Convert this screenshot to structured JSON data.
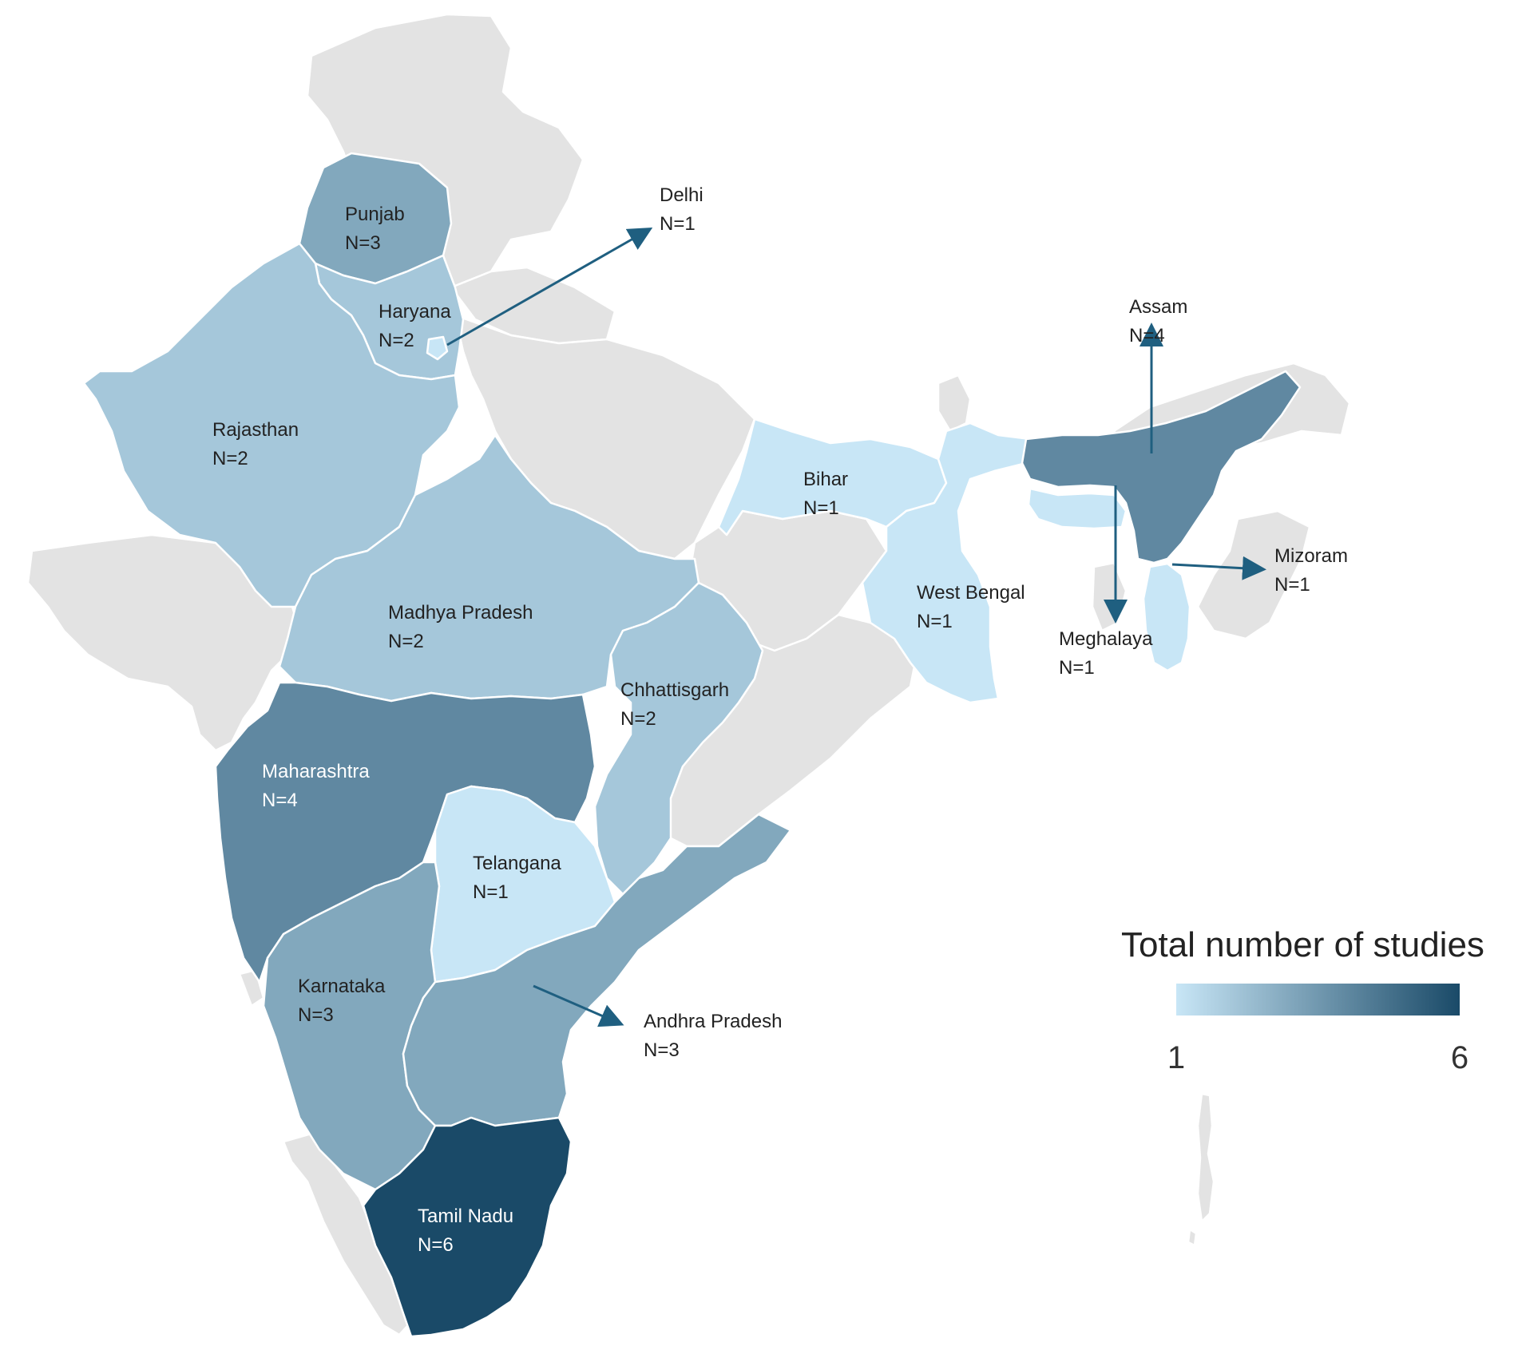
{
  "map": {
    "legend": {
      "title": "Total number of studies",
      "min_label": "1",
      "max_label": "6",
      "min_value": 1,
      "max_value": 6,
      "color_min": "#c8e6f6",
      "color_max": "#1a4a68"
    },
    "colors": {
      "no_data": "#e3e3e3",
      "border": "#ffffff",
      "arrow": "#1f5f80",
      "label_dark": "#222222",
      "label_light": "#ffffff"
    },
    "states": [
      {
        "id": "punjab",
        "name": "Punjab",
        "count_label": "N=3",
        "value": 3
      },
      {
        "id": "haryana",
        "name": "Haryana",
        "count_label": "N=2",
        "value": 2
      },
      {
        "id": "delhi",
        "name": "Delhi",
        "count_label": "N=1",
        "value": 1
      },
      {
        "id": "rajasthan",
        "name": "Rajasthan",
        "count_label": "N=2",
        "value": 2
      },
      {
        "id": "madhya-pradesh",
        "name": "Madhya Pradesh",
        "count_label": "N=2",
        "value": 2
      },
      {
        "id": "chhattisgarh",
        "name": "Chhattisgarh",
        "count_label": "N=2",
        "value": 2
      },
      {
        "id": "maharashtra",
        "name": "Maharashtra",
        "count_label": "N=4",
        "value": 4
      },
      {
        "id": "telangana",
        "name": "Telangana",
        "count_label": "N=1",
        "value": 1
      },
      {
        "id": "karnataka",
        "name": "Karnataka",
        "count_label": "N=3",
        "value": 3
      },
      {
        "id": "andhra-pradesh",
        "name": "Andhra Pradesh",
        "count_label": "N=3",
        "value": 3
      },
      {
        "id": "tamil-nadu",
        "name": "Tamil Nadu",
        "count_label": "N=6",
        "value": 6
      },
      {
        "id": "bihar",
        "name": "Bihar",
        "count_label": "N=1",
        "value": 1
      },
      {
        "id": "west-bengal",
        "name": "West Bengal",
        "count_label": "N=1",
        "value": 1
      },
      {
        "id": "assam",
        "name": "Assam",
        "count_label": "N=4",
        "value": 4
      },
      {
        "id": "meghalaya",
        "name": "Meghalaya",
        "count_label": "N=1",
        "value": 1
      },
      {
        "id": "mizoram",
        "name": "Mizoram",
        "count_label": "N=1",
        "value": 1
      }
    ]
  }
}
